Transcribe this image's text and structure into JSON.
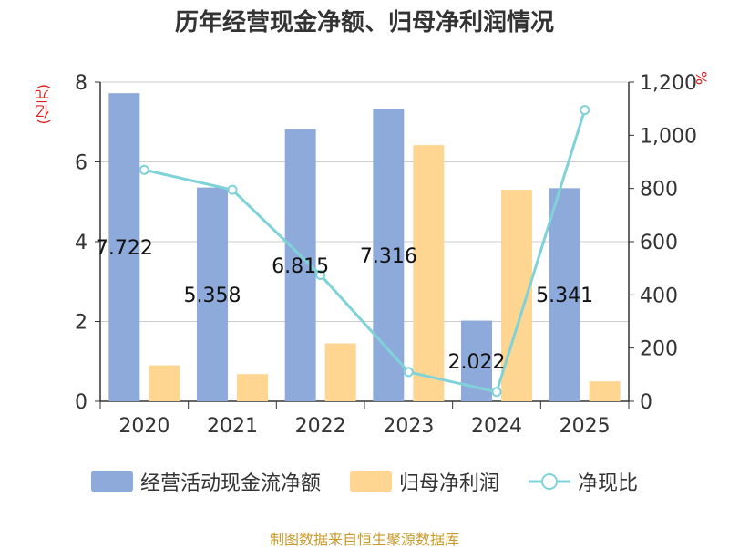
{
  "chart_data": {
    "type": "bar",
    "title": "历年经营现金净额、归母净利润情况",
    "left_unit": "(亿元)",
    "right_unit": "%",
    "categories": [
      "2020",
      "2021",
      "2022",
      "2023",
      "2024",
      "2025"
    ],
    "y_left": {
      "min": 0,
      "max": 8,
      "ticks": [
        "0",
        "2",
        "4",
        "6",
        "8"
      ]
    },
    "y_right": {
      "min": 0,
      "max": 1200,
      "ticks": [
        "0",
        "200",
        "400",
        "600",
        "800",
        "1,000",
        "1,200"
      ]
    },
    "grid": true,
    "legend_position": "bottom",
    "series": [
      {
        "name": "经营活动现金流净额",
        "kind": "bar",
        "axis": "left",
        "color": "#8eaadb",
        "values": [
          7.722,
          5.358,
          6.815,
          7.316,
          2.022,
          5.341
        ],
        "labels": [
          "7.722",
          "5.358",
          "6.815",
          "7.316",
          "2.022",
          "5.341"
        ]
      },
      {
        "name": "归母净利润",
        "kind": "bar",
        "axis": "left",
        "color": "#ffd592",
        "values": [
          0.9,
          0.68,
          1.45,
          6.42,
          5.3,
          0.5
        ]
      },
      {
        "name": "净现比",
        "kind": "line",
        "axis": "right",
        "color": "#7fd3d8",
        "values": [
          870,
          795,
          475,
          110,
          35,
          1095
        ]
      }
    ]
  },
  "source_text": "制图数据来自恒生聚源数据库"
}
